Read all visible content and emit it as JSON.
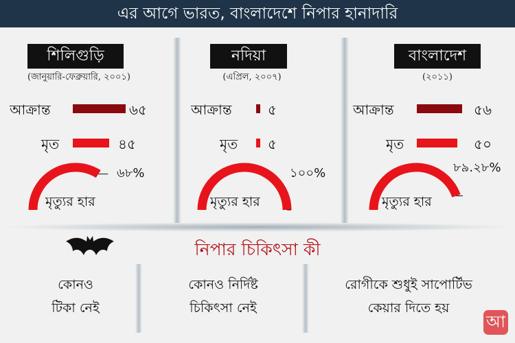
{
  "header": {
    "title": "এর আগে ভারত, বাংলাদেশে নিপার হানাদারি"
  },
  "labels": {
    "affected": "আক্রান্ত",
    "dead": "মৃত",
    "rate": "মৃত্যুর হার"
  },
  "colors": {
    "affected_bar": "#8b0a0f",
    "dead_bar": "#e8141b",
    "gauge": "#e8141b",
    "header_bg": "#1f3448",
    "treatment_title": "#b31217"
  },
  "outbreaks": [
    {
      "name": "শিলিগুড়ি",
      "period": "(জানুয়ারি-ফেব্রুয়ারি, ২০০১)",
      "affected": 65,
      "affected_text": "৬৫",
      "dead": 45,
      "dead_text": "৪৫",
      "rate": 68,
      "rate_text": "৬৮%"
    },
    {
      "name": "নদিয়া",
      "period": "(এপ্রিল, ২০০৭)",
      "affected": 5,
      "affected_text": "৫",
      "dead": 5,
      "dead_text": "৫",
      "rate": 100,
      "rate_text": "১০০%"
    },
    {
      "name": "বাংলাদেশ",
      "period": "(২০১১)",
      "affected": 56,
      "affected_text": "৫৬",
      "dead": 50,
      "dead_text": "৫০",
      "rate": 89.28,
      "rate_text": "৮৯.২৮%"
    }
  ],
  "treatment": {
    "title": "নিপার চিকিৎসা কী",
    "icon": "bat-icon",
    "items": [
      {
        "line1": "কোনও",
        "line2": "টিকা নেই"
      },
      {
        "line1": "কোনও নির্দিষ্ট",
        "line2": "চিকিৎসা নেই"
      },
      {
        "line1": "রোগীকে শুধুই সাপোর্টিভ",
        "line2": "কেয়ার দিতে হয়"
      }
    ]
  },
  "logo": {
    "text": "আ"
  }
}
